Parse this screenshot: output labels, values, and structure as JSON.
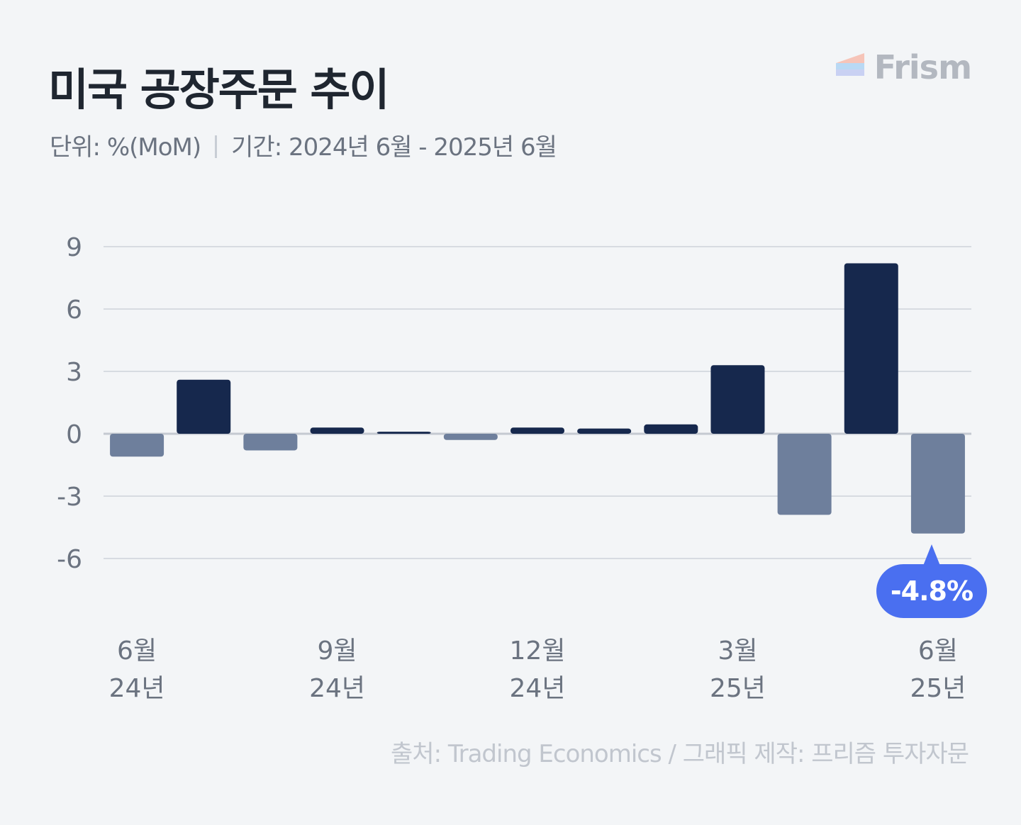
{
  "header": {
    "title": "미국 공장주문 추이",
    "unit_text": "단위: %(MoM)",
    "period_text": "기간: 2024년 6월 - 2025년 6월"
  },
  "logo": {
    "text": "Frism"
  },
  "footer": {
    "source": "출처: Trading Economics / 그래픽 제작: 프리즘 투자자문"
  },
  "callout": {
    "text": "-4.8%"
  },
  "colors": {
    "positive_bar": "#16284d",
    "negative_bar": "#6e7f9c",
    "gridline": "#d7dbe1",
    "zero_line": "#c4c9d1",
    "axis_text": "#6b7380",
    "accent": "#4a6ff0"
  },
  "chart_data": {
    "type": "bar",
    "categories": [
      "2024-06",
      "2024-07",
      "2024-08",
      "2024-09",
      "2024-10",
      "2024-11",
      "2024-12",
      "2025-01",
      "2025-02",
      "2025-03",
      "2025-04",
      "2025-05",
      "2025-06"
    ],
    "values": [
      -1.1,
      2.6,
      -0.8,
      0.3,
      0.1,
      -0.3,
      0.3,
      0.25,
      0.45,
      3.3,
      -3.9,
      8.2,
      -4.8
    ],
    "yticks": [
      9,
      6,
      3,
      0,
      -3,
      -6
    ],
    "ylim": [
      -6,
      9
    ],
    "x_tick_labels": [
      {
        "index": 0,
        "month": "6월",
        "year": "24년"
      },
      {
        "index": 3,
        "month": "9월",
        "year": "24년"
      },
      {
        "index": 6,
        "month": "12월",
        "year": "24년"
      },
      {
        "index": 9,
        "month": "3월",
        "year": "25년"
      },
      {
        "index": 12,
        "month": "6월",
        "year": "25년"
      }
    ],
    "grid": true,
    "legend": "none",
    "annotation": {
      "index": 12,
      "text": "-4.8%"
    }
  }
}
